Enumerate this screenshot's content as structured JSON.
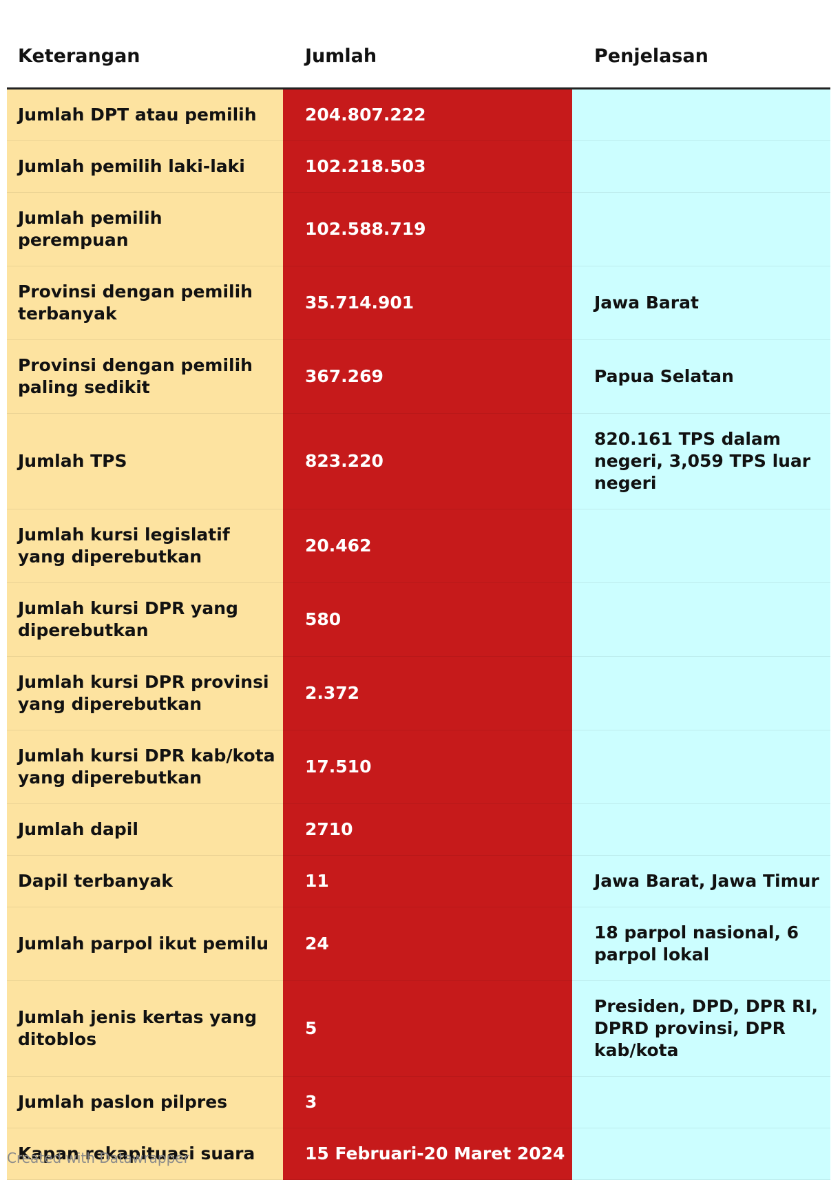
{
  "header": {
    "columns": [
      "Keterangan",
      "Jumlah",
      "Penjelasan"
    ]
  },
  "rows": [
    {
      "keterangan": "Jumlah DPT atau pemilih",
      "jumlah": "204.807.222"
    },
    {
      "keterangan": "Jumlah pemilih laki-laki",
      "jumlah": "102.218.503"
    },
    {
      "keterangan": "Jumlah pemilih perempuan",
      "jumlah": "102.588.719"
    },
    {
      "keterangan": "Provinsi dengan pemilih terbanyak",
      "jumlah": "35.714.901",
      "penjelasan": "Jawa Barat"
    },
    {
      "keterangan": "Provinsi dengan pemilih paling sedikit",
      "jumlah": "367.269",
      "penjelasan": "Papua Selatan"
    },
    {
      "keterangan": "Jumlah TPS",
      "jumlah": "823.220",
      "penjelasan": "820.161 TPS dalam negeri, 3,059 TPS luar negeri"
    },
    {
      "keterangan": "Jumlah kursi legislatif yang diperebutkan",
      "jumlah": "20.462"
    },
    {
      "keterangan": "Jumlah kursi DPR yang diperebutkan",
      "jumlah": "580"
    },
    {
      "keterangan": "Jumlah kursi DPR provinsi yang diperebutkan",
      "jumlah": "2.372"
    },
    {
      "keterangan": "Jumlah kursi DPR kab/kota yang diperebutkan",
      "jumlah": "17.510"
    },
    {
      "keterangan": "Jumlah dapil",
      "jumlah": "2710"
    },
    {
      "keterangan": "Dapil terbanyak",
      "jumlah": "11",
      "penjelasan": "Jawa Barat, Jawa Timur"
    },
    {
      "keterangan": "Jumlah parpol ikut pemilu",
      "jumlah": "24",
      "penjelasan": "18 parpol nasional, 6 parpol lokal"
    },
    {
      "keterangan": "Jumlah jenis kertas yang ditoblos",
      "jumlah": "5",
      "penjelasan": "Presiden, DPD, DPR RI, DPRD provinsi, DPR kab/kota"
    },
    {
      "keterangan": "Jumlah paslon pilpres",
      "jumlah": "3"
    },
    {
      "keterangan": "Kapan rekapituasi suara",
      "jumlah": "15 Februari-20 Maret 2024"
    }
  ],
  "footer": "Created with Datawrapper"
}
